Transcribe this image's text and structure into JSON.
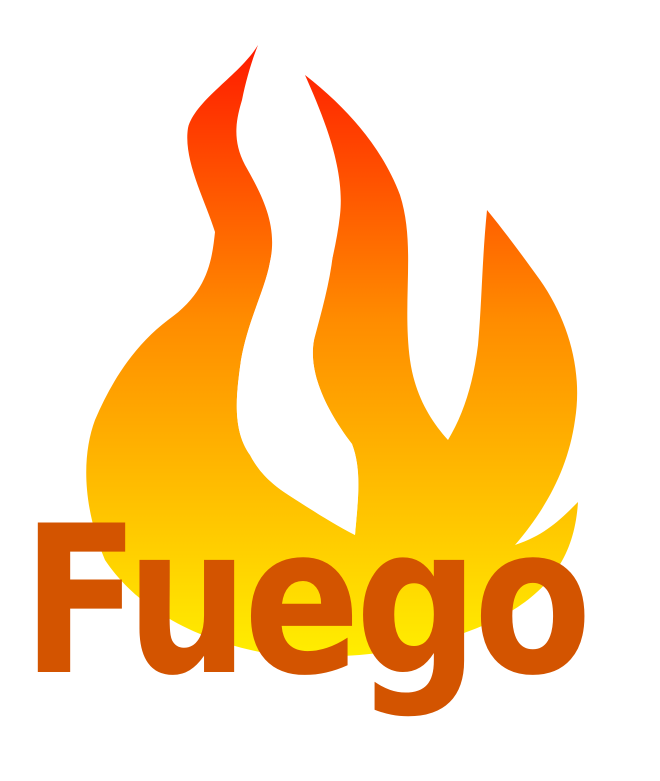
{
  "word": "Fuego",
  "colors": {
    "word": "#d35400",
    "flame_top": "#ff1a00",
    "flame_mid": "#ff8c00",
    "flame_bottom": "#ffee00"
  },
  "icon": "flame-icon"
}
